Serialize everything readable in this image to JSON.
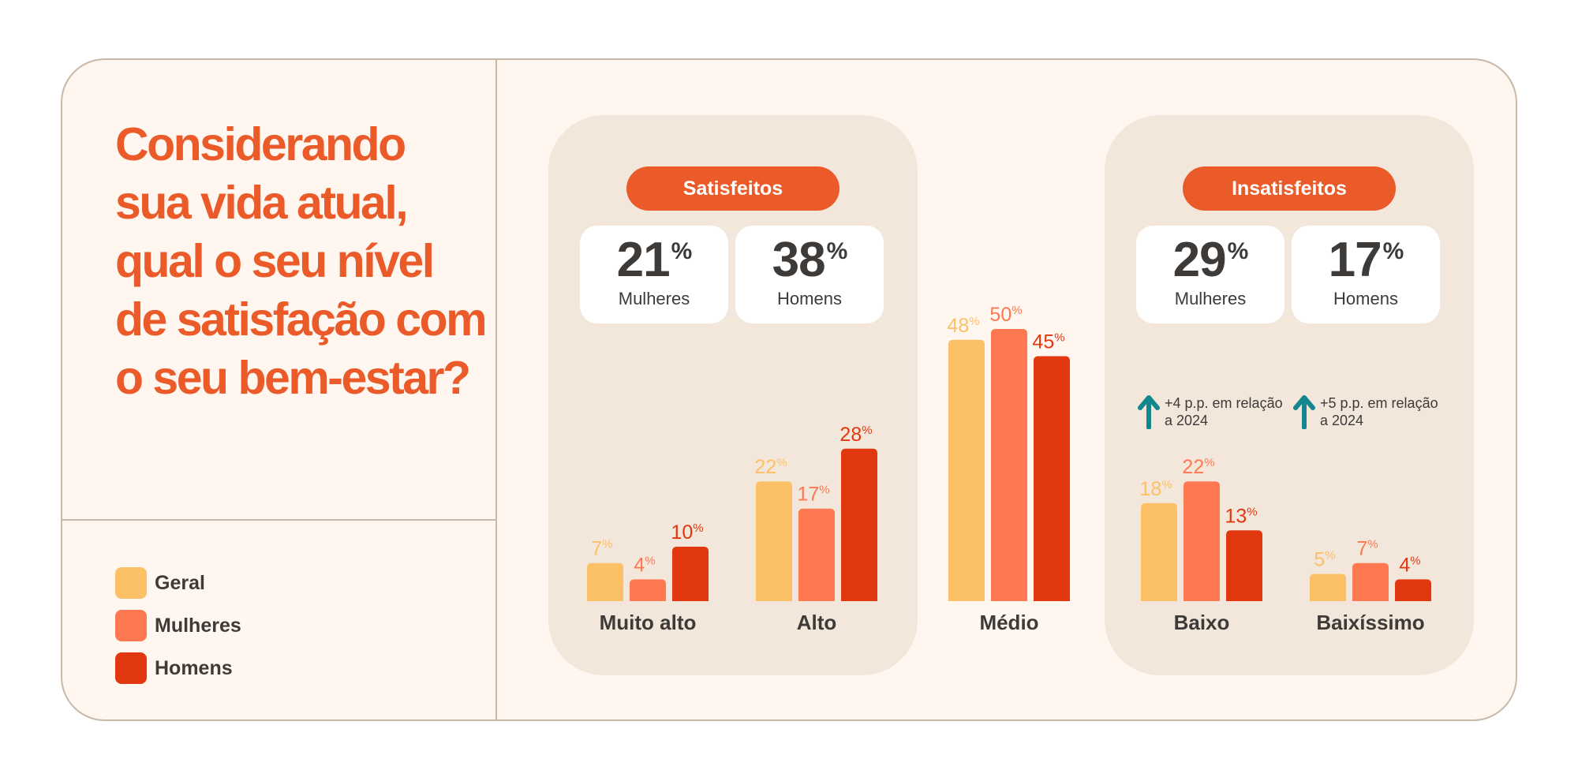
{
  "question": "Considerando sua vida atual, qual o seu nível de satisfação com o seu bem-estar?",
  "colors": {
    "geral": "#fcc066",
    "mulheres": "#fe7852",
    "homens": "#e2380f",
    "accent": "#ea5b29",
    "arrow": "#13868e"
  },
  "legend": [
    {
      "label": "Geral",
      "color": "#fcc066"
    },
    {
      "label": "Mulheres",
      "color": "#fe7852"
    },
    {
      "label": "Homens",
      "color": "#e2380f"
    }
  ],
  "groups": {
    "satisfied": {
      "title": "Satisfeitos",
      "stats": [
        {
          "value": "21",
          "unit": "%",
          "label": "Mulheres"
        },
        {
          "value": "38",
          "unit": "%",
          "label": "Homens"
        }
      ]
    },
    "dissatisfied": {
      "title": "Insatisfeitos",
      "stats": [
        {
          "value": "29",
          "unit": "%",
          "label": "Mulheres",
          "note": "+4 p.p. em relação a 2024",
          "icon": "arrow-up-icon"
        },
        {
          "value": "17",
          "unit": "%",
          "label": "Homens",
          "note": "+5 p.p. em relação a 2024",
          "icon": "arrow-up-icon"
        }
      ]
    }
  },
  "chart_data": {
    "type": "bar",
    "categories": [
      "Muito alto",
      "Alto",
      "Médio",
      "Baixo",
      "Baixíssimo"
    ],
    "series": [
      {
        "name": "Geral",
        "values": [
          7,
          22,
          48,
          18,
          5
        ]
      },
      {
        "name": "Mulheres",
        "values": [
          4,
          17,
          50,
          22,
          7
        ]
      },
      {
        "name": "Homens",
        "values": [
          10,
          28,
          45,
          13,
          4
        ]
      }
    ],
    "unit": "%",
    "ylim": [
      0,
      50
    ],
    "grid": false,
    "legend": "left-bottom"
  }
}
